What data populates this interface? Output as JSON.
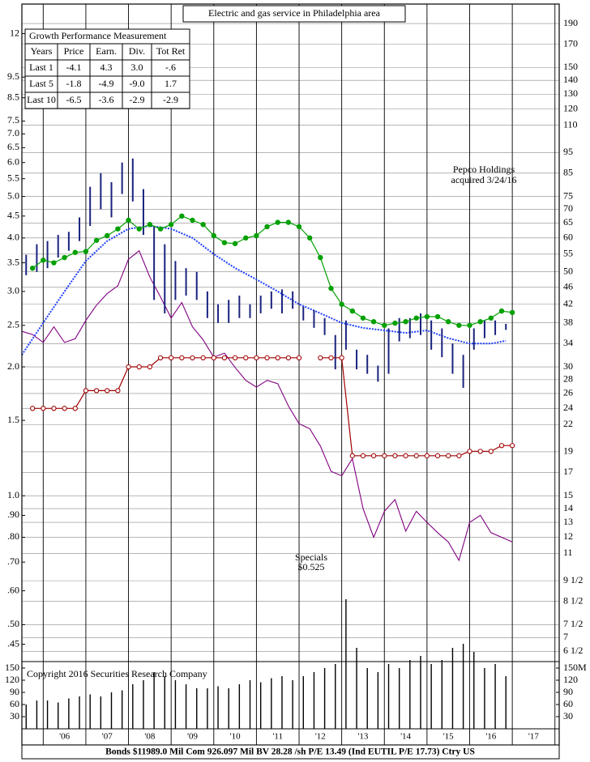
{
  "chart_data": {
    "type": "stock",
    "title": "Electric and gas service in Philadelphia area",
    "log": true,
    "grid": true,
    "xlim": [
      2005.5,
      2018.1
    ],
    "xticks": [
      {
        "value": 2006.5,
        "label": "'06"
      },
      {
        "value": 2007.5,
        "label": "'07"
      },
      {
        "value": 2008.5,
        "label": "'08"
      },
      {
        "value": 2009.5,
        "label": "'09"
      },
      {
        "value": 2010.5,
        "label": "'10"
      },
      {
        "value": 2011.5,
        "label": "'11"
      },
      {
        "value": 2012.5,
        "label": "'12"
      },
      {
        "value": 2013.5,
        "label": "'13"
      },
      {
        "value": 2014.5,
        "label": "'14"
      },
      {
        "value": 2015.5,
        "label": "'15"
      },
      {
        "value": 2016.5,
        "label": "'16"
      },
      {
        "value": 2017.5,
        "label": "'17"
      }
    ],
    "ylim": [
      0.41,
      14.07
    ],
    "yticks": [
      12,
      9.5,
      8.5,
      7.5,
      {
        "value": 7,
        "label": "7.0"
      },
      6.5,
      {
        "value": 6,
        "label": "6.0"
      },
      5.5,
      {
        "value": 5,
        "label": "5.0"
      },
      4.5,
      {
        "value": 4,
        "label": "4.0"
      },
      3.5,
      {
        "value": 3,
        "label": "3.0"
      },
      2.5,
      {
        "value": 2,
        "label": "2.0"
      },
      1.5,
      {
        "value": 1,
        "label": "1.0"
      },
      {
        "value": 0.9,
        "label": ".90"
      },
      {
        "value": 0.8,
        "label": ".80"
      },
      {
        "value": 0.7,
        "label": ".70"
      },
      {
        "value": 0.6,
        "label": ".60"
      },
      {
        "value": 0.5,
        "label": ".50"
      },
      {
        "value": 0.45,
        "label": ".45"
      }
    ],
    "y2lim": [
      6.15,
      211
    ],
    "y2ticks": [
      190,
      170,
      150,
      140,
      130,
      120,
      110,
      95,
      85,
      75,
      70,
      65,
      60,
      55,
      50,
      46,
      42,
      38,
      34,
      30,
      28,
      26,
      24,
      22,
      19,
      17,
      15,
      14,
      13,
      12,
      11,
      {
        "value": 9.5,
        "label": "9 1/2"
      },
      {
        "value": 8.5,
        "label": "8 1/2"
      },
      {
        "value": 7.5,
        "label": "7 1/2"
      },
      7,
      {
        "value": 6.5,
        "label": "6 1/2"
      }
    ],
    "price": {
      "color": "#1a237e",
      "axis": "y2",
      "x": [
        2005.6,
        2005.85,
        2006.1,
        2006.35,
        2006.6,
        2006.85,
        2007.1,
        2007.35,
        2007.6,
        2007.85,
        2008.1,
        2008.35,
        2008.6,
        2008.85,
        2009.1,
        2009.35,
        2009.6,
        2009.85,
        2010.1,
        2010.35,
        2010.6,
        2010.85,
        2011.1,
        2011.35,
        2011.6,
        2011.85,
        2012.1,
        2012.35,
        2012.6,
        2012.85,
        2013.1,
        2013.35,
        2013.6,
        2013.85,
        2014.1,
        2014.35,
        2014.6,
        2014.85,
        2015.1,
        2015.35,
        2015.6,
        2015.85,
        2016.1,
        2016.35,
        2016.6,
        2016.85
      ],
      "high": [
        54.8,
        58,
        59,
        61,
        62,
        67,
        79,
        85,
        81,
        90,
        92,
        78,
        64,
        58,
        53,
        51,
        50,
        45,
        42,
        43,
        44,
        42,
        44,
        45,
        45.5,
        45,
        41.5,
        40.7,
        39,
        35.6,
        38.5,
        32.9,
        32,
        30.2,
        36.9,
        39,
        39,
        40,
        38.5,
        36.9,
        34,
        32,
        36.9,
        38.5,
        38.5,
        37.8
      ],
      "low": [
        49.1,
        50,
        51,
        54,
        56,
        59,
        64,
        70,
        67,
        76,
        73,
        61,
        43,
        40,
        43,
        44,
        43,
        39,
        38,
        38,
        39,
        39,
        40,
        41,
        40,
        41,
        38.5,
        37,
        35.6,
        29.6,
        32.9,
        29.6,
        28.9,
        27.7,
        28.9,
        34.4,
        35,
        35.6,
        32.9,
        31.6,
        28.9,
        26.8,
        32.9,
        35,
        35.6,
        36.6
      ]
    },
    "moving_average": {
      "color": "#1f3fff",
      "axis": "y2",
      "x": [
        2005.5,
        2006,
        2006.5,
        2007,
        2007.5,
        2008,
        2008.5,
        2009,
        2009.5,
        2010,
        2010.5,
        2011,
        2011.5,
        2012,
        2012.5,
        2013,
        2013.5,
        2014,
        2014.5,
        2015,
        2015.5,
        2016,
        2016.5,
        2016.85
      ],
      "values": [
        32,
        38,
        45,
        53,
        59,
        63,
        64,
        63,
        60,
        55,
        51,
        48,
        45,
        42,
        40,
        38,
        37,
        36.5,
        36,
        36.5,
        35,
        34,
        34,
        34.5
      ]
    },
    "earnings": {
      "color": "#00a000",
      "x": [
        2005.75,
        2006,
        2006.25,
        2006.5,
        2006.75,
        2007,
        2007.25,
        2007.5,
        2007.75,
        2008,
        2008.25,
        2008.5,
        2008.75,
        2009,
        2009.25,
        2009.5,
        2009.75,
        2010,
        2010.25,
        2010.5,
        2010.75,
        2011,
        2011.25,
        2011.5,
        2011.75,
        2012,
        2012.25,
        2012.5,
        2012.75,
        2013,
        2013.25,
        2013.5,
        2013.75,
        2014,
        2014.25,
        2014.5,
        2014.75,
        2015,
        2015.25,
        2015.5,
        2015.75,
        2016,
        2016.25,
        2016.5,
        2016.75,
        2017
      ],
      "values": [
        3.4,
        3.55,
        3.5,
        3.6,
        3.7,
        3.72,
        3.95,
        4.05,
        4.2,
        4.4,
        4.2,
        4.3,
        4.2,
        4.3,
        4.5,
        4.4,
        4.3,
        4.05,
        3.9,
        3.88,
        4.0,
        4.05,
        4.25,
        4.35,
        4.35,
        4.25,
        4.0,
        3.6,
        3.05,
        2.8,
        2.7,
        2.6,
        2.55,
        2.5,
        2.53,
        2.55,
        2.6,
        2.62,
        2.62,
        2.55,
        2.5,
        2.5,
        2.55,
        2.6,
        2.7,
        2.68
      ]
    },
    "dividends": {
      "color": "#a00000",
      "x": [
        2005.75,
        2006,
        2006.25,
        2006.5,
        2006.75,
        2007,
        2007.25,
        2007.5,
        2007.75,
        2008,
        2008.25,
        2008.5,
        2008.75,
        2009,
        2009.25,
        2009.5,
        2009.75,
        2010,
        2010.25,
        2010.5,
        2010.75,
        2011,
        2011.25,
        2011.5,
        2011.75,
        2012,
        2012.25,
        2012.5,
        2012.75,
        2013,
        2013.25,
        2013.5,
        2013.75,
        2014,
        2014.25,
        2014.5,
        2014.75,
        2015,
        2015.25,
        2015.5,
        2015.75,
        2016,
        2016.25,
        2016.5,
        2016.75,
        2017
      ],
      "values": [
        1.6,
        1.6,
        1.6,
        1.6,
        1.6,
        1.76,
        1.76,
        1.76,
        1.76,
        2.0,
        2.0,
        2.0,
        2.1,
        2.1,
        2.1,
        2.1,
        2.1,
        2.1,
        2.1,
        2.1,
        2.1,
        2.1,
        2.1,
        2.1,
        2.1,
        2.1,
        null,
        2.1,
        2.1,
        2.1,
        1.24,
        1.24,
        1.24,
        1.24,
        1.24,
        1.24,
        1.24,
        1.24,
        1.24,
        1.24,
        1.24,
        1.27,
        1.27,
        1.27,
        1.31,
        1.31
      ]
    },
    "relative_strength": {
      "color": "#800080",
      "axis": "y2",
      "x": [
        2005.5,
        2005.75,
        2006,
        2006.25,
        2006.5,
        2006.75,
        2007,
        2007.25,
        2007.5,
        2007.75,
        2008,
        2008.25,
        2008.5,
        2008.75,
        2009,
        2009.25,
        2009.5,
        2009.75,
        2010,
        2010.25,
        2010.5,
        2010.75,
        2011,
        2011.25,
        2011.5,
        2011.75,
        2012,
        2012.25,
        2012.5,
        2012.75,
        2013,
        2013.25,
        2013.5,
        2013.75,
        2014,
        2014.25,
        2014.5,
        2014.75,
        2015,
        2015.25,
        2015.5,
        2015.75,
        2016,
        2016.25,
        2016.5,
        2016.75,
        2017
      ],
      "values": [
        36.3,
        35.7,
        34.2,
        37.2,
        34.2,
        34.9,
        38.5,
        41.8,
        44.5,
        46.4,
        53.5,
        56,
        48.6,
        43.7,
        39,
        42.4,
        37.2,
        34.7,
        31.6,
        32.3,
        29.9,
        27.9,
        26.9,
        27.9,
        27.4,
        24.3,
        22.1,
        21.5,
        19.6,
        17.1,
        16.7,
        18.3,
        14,
        12,
        13.8,
        14.7,
        12.4,
        13.8,
        13,
        12.3,
        11.7,
        10.6,
        13,
        13.5,
        12.3,
        12,
        11.7
      ]
    },
    "volume": {
      "color": "#000000",
      "ylim": [
        0,
        166
      ],
      "yticks": [
        150,
        120,
        90,
        60,
        30
      ],
      "y2ticks": [
        {
          "value": 150,
          "label": "150M"
        },
        120,
        90,
        60,
        30
      ],
      "x": [
        2005.6,
        2005.85,
        2006.1,
        2006.35,
        2006.6,
        2006.85,
        2007.1,
        2007.35,
        2007.6,
        2007.85,
        2008.1,
        2008.35,
        2008.6,
        2008.85,
        2009.1,
        2009.35,
        2009.6,
        2009.85,
        2010.1,
        2010.35,
        2010.6,
        2010.85,
        2011.1,
        2011.35,
        2011.6,
        2011.85,
        2012.1,
        2012.35,
        2012.6,
        2012.85,
        2013.1,
        2013.35,
        2013.6,
        2013.85,
        2014.1,
        2014.35,
        2014.6,
        2014.85,
        2015.1,
        2015.35,
        2015.6,
        2015.85,
        2016.1,
        2016.35,
        2016.6,
        2016.85
      ],
      "values": [
        60,
        70,
        70,
        65,
        75,
        80,
        85,
        80,
        90,
        95,
        110,
        120,
        140,
        130,
        120,
        110,
        100,
        100,
        105,
        100,
        110,
        120,
        115,
        125,
        130,
        120,
        130,
        140,
        150,
        160,
        320,
        200,
        150,
        140,
        160,
        150,
        170,
        180,
        160,
        170,
        200,
        210,
        190,
        150,
        160,
        130
      ]
    },
    "annotations": [
      "Pepco Holdings",
      "acquired 3/24/16",
      "Specials",
      "$0.525"
    ],
    "copyright": "Copyright 2016 Securities Research Company"
  },
  "table": {
    "title": "Growth Performance Measurement",
    "columns": [
      "Years",
      "Price",
      "Earn.",
      "Div.",
      "Tot Ret"
    ],
    "rows": [
      [
        "Last 1",
        "-4.1",
        "4.3",
        "3.0",
        "-.6"
      ],
      [
        "Last 5",
        "-1.8",
        "-4.9",
        "-9.0",
        "1.7"
      ],
      [
        "Last 10",
        "-6.5",
        "-3.6",
        "-2.9",
        "-2.9"
      ]
    ]
  },
  "footer": "Bonds  $11989.0 Mil Com 926.097 Mil BV 28.28 /sh  P/E 13.49 (Ind EUTIL P/E 17.73) Ctry US"
}
